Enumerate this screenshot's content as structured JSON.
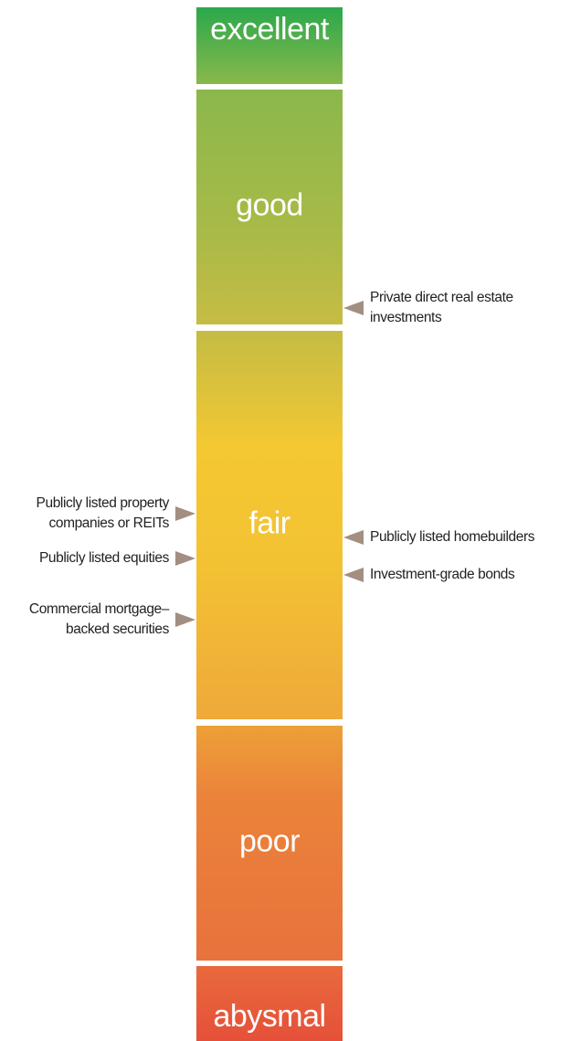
{
  "segments": [
    "excellent",
    "good",
    "fair",
    "poor",
    "abysmal"
  ],
  "annotations_right": [
    {
      "lines": [
        "Private direct real estate",
        "investments"
      ]
    },
    {
      "lines": [
        "Publicly listed homebuilders"
      ]
    },
    {
      "lines": [
        "Investment-grade bonds"
      ]
    }
  ],
  "annotations_left": [
    {
      "lines": [
        "Publicly listed property",
        "companies or REITs"
      ]
    },
    {
      "lines": [
        "Publicly listed equities"
      ]
    },
    {
      "lines": [
        "Commercial mortgage–",
        "backed securities"
      ]
    }
  ]
}
